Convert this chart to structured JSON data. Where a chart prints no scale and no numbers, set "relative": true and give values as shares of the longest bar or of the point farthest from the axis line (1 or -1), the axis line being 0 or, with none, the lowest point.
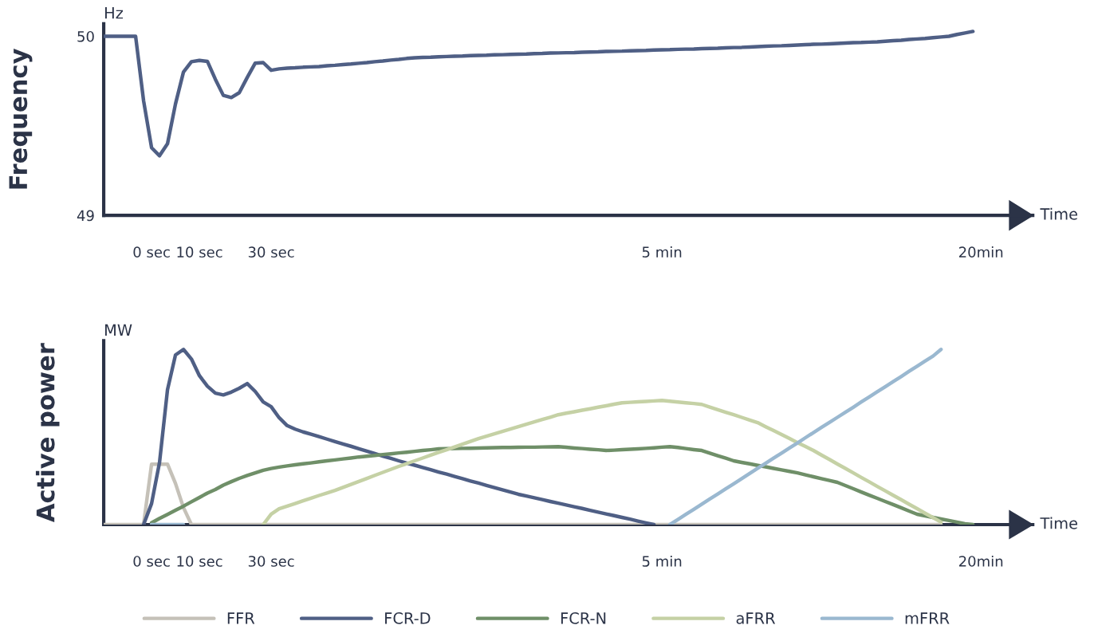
{
  "chart_data": [
    {
      "type": "line",
      "ylabel": "Frequency",
      "xlabel": "Time",
      "annotations": [
        "Hz"
      ],
      "line_style": "solid",
      "ylim": [
        49,
        50.07
      ],
      "yticks": [
        49,
        50
      ],
      "categories": [
        null,
        null,
        null,
        null,
        null,
        null,
        "0 sec",
        null,
        null,
        null,
        null,
        null,
        "10 sec",
        null,
        null,
        null,
        null,
        null,
        null,
        null,
        null,
        "30 sec",
        null,
        null,
        null,
        null,
        null,
        null,
        null,
        null,
        null,
        null,
        null,
        null,
        null,
        null,
        null,
        null,
        null,
        null,
        null,
        null,
        null,
        null,
        null,
        null,
        null,
        null,
        null,
        null,
        null,
        null,
        null,
        null,
        null,
        null,
        null,
        null,
        null,
        null,
        null,
        null,
        null,
        null,
        null,
        null,
        null,
        null,
        null,
        null,
        "5 min",
        null,
        null,
        null,
        null,
        null,
        null,
        null,
        null,
        null,
        null,
        null,
        null,
        null,
        null,
        null,
        null,
        null,
        null,
        null,
        null,
        null,
        null,
        null,
        null,
        null,
        null,
        null,
        null,
        null,
        null,
        null,
        null,
        null,
        null,
        null,
        null,
        null,
        null,
        null,
        "20min",
        null,
        null,
        null,
        null,
        null,
        null
      ],
      "series": [
        {
          "color": "#4f5f85",
          "values": [
            50,
            50,
            50,
            50,
            50,
            49.64,
            49.378,
            49.333,
            49.4,
            49.622,
            49.8,
            49.858,
            49.865,
            49.86,
            49.76,
            49.67,
            49.658,
            49.685,
            49.77,
            49.85,
            49.853,
            49.81,
            49.818,
            49.822,
            49.824,
            49.827,
            49.829,
            49.831,
            49.835,
            49.838,
            49.842,
            49.845,
            49.849,
            49.853,
            49.858,
            49.862,
            49.867,
            49.871,
            49.876,
            49.88,
            49.882,
            49.883,
            49.885,
            49.887,
            49.889,
            49.89,
            49.892,
            49.893,
            49.894,
            49.896,
            49.897,
            49.899,
            49.9,
            49.901,
            49.903,
            49.904,
            49.906,
            49.907,
            49.908,
            49.909,
            49.911,
            49.912,
            49.913,
            49.915,
            49.916,
            49.917,
            49.919,
            49.92,
            49.921,
            49.923,
            49.924,
            49.925,
            49.927,
            49.928,
            49.929,
            49.931,
            49.932,
            49.933,
            49.935,
            49.937,
            49.938,
            49.94,
            49.942,
            49.944,
            49.946,
            49.947,
            49.949,
            49.951,
            49.953,
            49.955,
            49.956,
            49.958,
            49.96,
            49.962,
            49.964,
            49.965,
            49.967,
            49.969,
            49.972,
            49.975,
            49.978,
            49.982,
            49.985,
            49.988,
            49.992,
            49.996,
            50,
            50.01,
            50.018,
            50.027,
            null,
            null,
            null,
            null,
            null,
            null,
            null
          ]
        }
      ]
    },
    {
      "type": "line",
      "ylabel": "Active power",
      "xlabel": "Time",
      "annotations": [
        "MW"
      ],
      "relative": true,
      "tick_labels": "x",
      "legend": "bottom",
      "line_style": "solid",
      "categories": [
        null,
        null,
        null,
        null,
        null,
        null,
        "0 sec",
        null,
        null,
        null,
        null,
        null,
        "10 sec",
        null,
        null,
        null,
        null,
        null,
        null,
        null,
        null,
        "30 sec",
        null,
        null,
        null,
        null,
        null,
        null,
        null,
        null,
        null,
        null,
        null,
        null,
        null,
        null,
        null,
        null,
        null,
        null,
        null,
        null,
        null,
        null,
        null,
        null,
        null,
        null,
        null,
        null,
        null,
        null,
        null,
        null,
        null,
        null,
        null,
        null,
        null,
        null,
        null,
        null,
        null,
        null,
        null,
        null,
        null,
        null,
        null,
        null,
        "5 min",
        null,
        null,
        null,
        null,
        null,
        null,
        null,
        null,
        null,
        null,
        null,
        null,
        null,
        null,
        null,
        null,
        null,
        null,
        null,
        null,
        null,
        null,
        null,
        null,
        null,
        null,
        null,
        null,
        null,
        null,
        null,
        null,
        null,
        null,
        null,
        null,
        null,
        null,
        null,
        "20min",
        null,
        null,
        null,
        null,
        null,
        null
      ],
      "series": [
        {
          "name": "FFR",
          "color": "#c5c1b8",
          "values": [
            0,
            0,
            0,
            0,
            0,
            0,
            0.345,
            0.345,
            0.345,
            0.235,
            0.097,
            0,
            0,
            0,
            0,
            0,
            0,
            0,
            0,
            0,
            0,
            0,
            0,
            0,
            0,
            0,
            0,
            0,
            0,
            0,
            0,
            0,
            0,
            0,
            0,
            0,
            0,
            0,
            0,
            0,
            0,
            0,
            0,
            0,
            0,
            0,
            0,
            0,
            0,
            0,
            0,
            0,
            0,
            0,
            0,
            0,
            0,
            0,
            0,
            0,
            0,
            0,
            0,
            0,
            0,
            0,
            0,
            0,
            0,
            0,
            0,
            0,
            0,
            0,
            0,
            0,
            0,
            0,
            0,
            0,
            0,
            0,
            0,
            0,
            0,
            0,
            0,
            0,
            0,
            0,
            0,
            0,
            0,
            0,
            0,
            0,
            0,
            0,
            0,
            0,
            0,
            0,
            0,
            0,
            0,
            0,
            null,
            null,
            null,
            null,
            null,
            null,
            null,
            null,
            null,
            null,
            null
          ]
        },
        {
          "name": "FCR-D",
          "color": "#4f5f85",
          "values": [
            null,
            null,
            null,
            null,
            null,
            0,
            0.12,
            0.355,
            0.77,
            0.968,
            1,
            0.945,
            0.85,
            0.79,
            0.75,
            0.74,
            0.756,
            0.778,
            0.805,
            0.76,
            0.7,
            0.673,
            0.61,
            0.565,
            0.545,
            0.529,
            0.516,
            0.502,
            0.488,
            0.474,
            0.46,
            0.447,
            0.433,
            0.419,
            0.405,
            0.391,
            0.378,
            0.364,
            0.351,
            0.339,
            0.326,
            0.313,
            0.3,
            0.288,
            0.275,
            0.262,
            0.249,
            0.237,
            0.224,
            0.211,
            0.198,
            0.186,
            0.173,
            0.163,
            0.153,
            0.143,
            0.132,
            0.122,
            0.112,
            0.102,
            0.092,
            0.081,
            0.071,
            0.061,
            0.051,
            0.041,
            0.031,
            0.02,
            0.01,
            0,
            null,
            null,
            null,
            null,
            null,
            null,
            null,
            null,
            null,
            null,
            null,
            null,
            null,
            null,
            null,
            null,
            null,
            null,
            null,
            null,
            null,
            null,
            null,
            null,
            null,
            null,
            null,
            null,
            null,
            null,
            null,
            null,
            null,
            null,
            null,
            null,
            null,
            null,
            null,
            null,
            null,
            null,
            null,
            null,
            null,
            null,
            null
          ]
        },
        {
          "name": "FCR-N",
          "color": "#6f8f68",
          "values": [
            null,
            null,
            null,
            null,
            null,
            null,
            0.01,
            0.035,
            0.058,
            0.082,
            0.105,
            0.13,
            0.155,
            0.18,
            0.2,
            0.225,
            0.245,
            0.264,
            0.28,
            0.295,
            0.31,
            0.32,
            0.328,
            0.335,
            0.341,
            0.347,
            0.352,
            0.358,
            0.364,
            0.369,
            0.375,
            0.38,
            0.386,
            0.39,
            0.395,
            0.4,
            0.404,
            0.409,
            0.413,
            0.418,
            0.423,
            0.427,
            0.432,
            0.433,
            0.434,
            0.435,
            0.436,
            0.437,
            0.438,
            0.439,
            0.44,
            0.44,
            0.441,
            0.442,
            0.442,
            0.443,
            0.444,
            0.445,
            0.441,
            0.437,
            0.434,
            0.43,
            0.427,
            0.423,
            0.425,
            0.428,
            0.43,
            0.432,
            0.435,
            0.438,
            0.442,
            0.445,
            0.44,
            0.434,
            0.428,
            0.423,
            0.408,
            0.393,
            0.379,
            0.364,
            0.355,
            0.347,
            0.338,
            0.33,
            0.321,
            0.312,
            0.304,
            0.295,
            0.284,
            0.273,
            0.262,
            0.252,
            0.241,
            0.223,
            0.205,
            0.186,
            0.168,
            0.15,
            0.132,
            0.114,
            0.096,
            0.077,
            0.059,
            0.05,
            0.041,
            0.032,
            0.023,
            0.014,
            0.005,
            0,
            null,
            null,
            null,
            null,
            null,
            null,
            null
          ]
        },
        {
          "name": "aFRR",
          "color": "#c5d1a5",
          "values": [
            null,
            null,
            null,
            null,
            null,
            null,
            null,
            null,
            null,
            null,
            null,
            null,
            null,
            null,
            null,
            null,
            null,
            null,
            null,
            null,
            0,
            0.06,
            0.09,
            0.105,
            0.12,
            0.136,
            0.151,
            0.166,
            0.18,
            0.195,
            0.212,
            0.229,
            0.246,
            0.263,
            0.281,
            0.298,
            0.315,
            0.332,
            0.348,
            0.364,
            0.38,
            0.396,
            0.412,
            0.427,
            0.443,
            0.459,
            0.475,
            0.491,
            0.505,
            0.518,
            0.532,
            0.545,
            0.559,
            0.573,
            0.586,
            0.6,
            0.613,
            0.627,
            0.636,
            0.644,
            0.653,
            0.661,
            0.67,
            0.678,
            0.687,
            0.695,
            0.698,
            0.701,
            0.703,
            0.706,
            0.709,
            0.704,
            0.7,
            0.695,
            0.691,
            0.686,
            0.671,
            0.656,
            0.641,
            0.627,
            0.612,
            0.597,
            0.582,
            0.559,
            0.537,
            0.514,
            0.491,
            0.468,
            0.446,
            0.423,
            0.397,
            0.372,
            0.346,
            0.321,
            0.295,
            0.269,
            0.244,
            0.218,
            0.193,
            0.167,
            0.142,
            0.116,
            0.091,
            0.065,
            0.04,
            0.014,
            null,
            null,
            null,
            null,
            null,
            null,
            null,
            null,
            null,
            null,
            null
          ]
        },
        {
          "name": "mFRR",
          "color": "#9ab8d0",
          "values": [
            null,
            null,
            null,
            null,
            null,
            null,
            0,
            0,
            0,
            0,
            0,
            null,
            null,
            null,
            null,
            null,
            null,
            null,
            null,
            null,
            null,
            null,
            null,
            null,
            null,
            null,
            null,
            null,
            null,
            null,
            null,
            null,
            null,
            null,
            null,
            null,
            null,
            null,
            null,
            null,
            null,
            null,
            null,
            null,
            null,
            null,
            null,
            null,
            null,
            null,
            null,
            null,
            null,
            null,
            null,
            null,
            null,
            null,
            null,
            null,
            null,
            null,
            null,
            null,
            null,
            null,
            null,
            null,
            null,
            null,
            null,
            0,
            0.029,
            0.058,
            0.087,
            0.117,
            0.146,
            0.175,
            0.204,
            0.233,
            0.262,
            0.292,
            0.321,
            0.35,
            0.379,
            0.408,
            0.437,
            0.466,
            0.496,
            0.525,
            0.554,
            0.583,
            0.612,
            0.641,
            0.67,
            0.7,
            0.729,
            0.758,
            0.787,
            0.816,
            0.845,
            0.875,
            0.904,
            0.933,
            0.962,
            1,
            null,
            null,
            null,
            null,
            null,
            null,
            null,
            null,
            null,
            null,
            null
          ]
        }
      ]
    }
  ]
}
